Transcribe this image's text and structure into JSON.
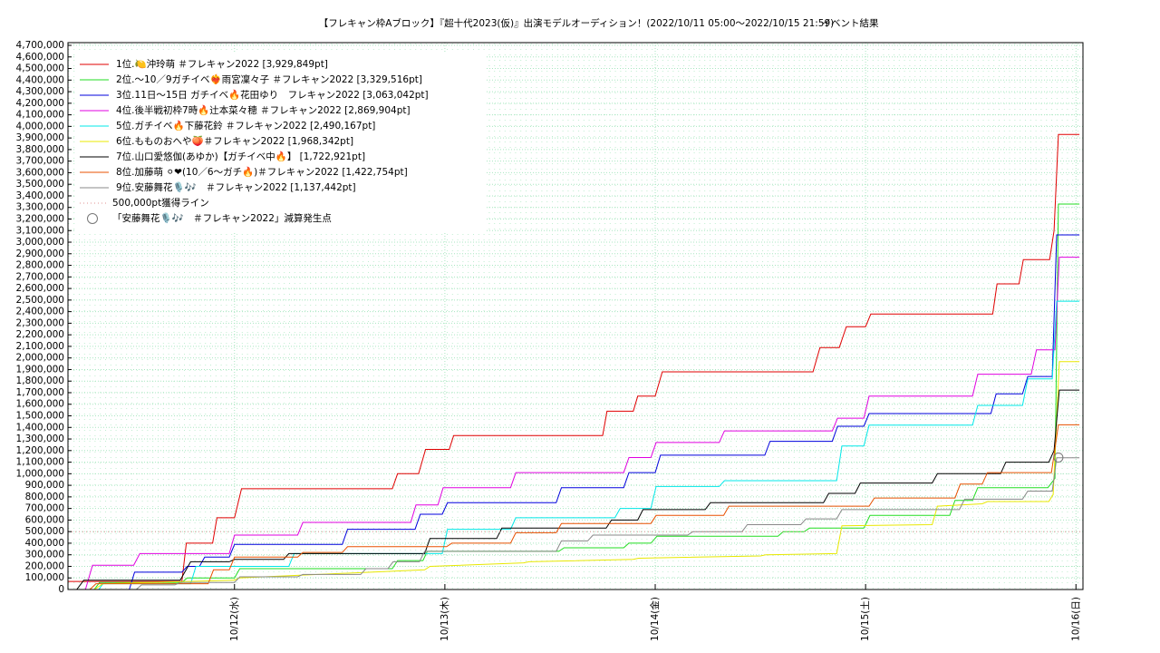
{
  "chart_data": {
    "type": "line",
    "title": "【フレキャン枠Aブロック】『超十代2023(仮)』出演モデルオーディション！(2022/10/11 05:00〜2022/10/15 21:59)",
    "subtitle": "イベント結果",
    "xlim": [
      5,
      120.8
    ],
    "xticks": [
      {
        "value": 24,
        "label": "10/12(水)"
      },
      {
        "value": 48,
        "label": "10/13(木)"
      },
      {
        "value": 72,
        "label": "10/14(金)"
      },
      {
        "value": 96,
        "label": "10/15(土)"
      },
      {
        "value": 120,
        "label": "10/16(日)"
      }
    ],
    "ylim": [
      0,
      4700000
    ],
    "yticks": [
      {
        "value": 0,
        "label": "0"
      },
      {
        "value": 100000,
        "label": "100,000"
      },
      {
        "value": 200000,
        "label": "200,000"
      },
      {
        "value": 300000,
        "label": "300,000"
      },
      {
        "value": 400000,
        "label": "400,000"
      },
      {
        "value": 500000,
        "label": "500,000"
      },
      {
        "value": 600000,
        "label": "600,000"
      },
      {
        "value": 700000,
        "label": "700,000"
      },
      {
        "value": 800000,
        "label": "800,000"
      },
      {
        "value": 900000,
        "label": "900,000"
      },
      {
        "value": 1000000,
        "label": "1,000,000"
      },
      {
        "value": 1100000,
        "label": "1,100,000"
      },
      {
        "value": 1200000,
        "label": "1,200,000"
      },
      {
        "value": 1300000,
        "label": "1,300,000"
      },
      {
        "value": 1400000,
        "label": "1,400,000"
      },
      {
        "value": 1500000,
        "label": "1,500,000"
      },
      {
        "value": 1600000,
        "label": "1,600,000"
      },
      {
        "value": 1700000,
        "label": "1,700,000"
      },
      {
        "value": 1800000,
        "label": "1,800,000"
      },
      {
        "value": 1900000,
        "label": "1,900,000"
      },
      {
        "value": 2000000,
        "label": "2,000,000"
      },
      {
        "value": 2100000,
        "label": "2,100,000"
      },
      {
        "value": 2200000,
        "label": "2,200,000"
      },
      {
        "value": 2300000,
        "label": "2,300,000"
      },
      {
        "value": 2400000,
        "label": "2,400,000"
      },
      {
        "value": 2500000,
        "label": "2,500,000"
      },
      {
        "value": 2600000,
        "label": "2,600,000"
      },
      {
        "value": 2700000,
        "label": "2,700,000"
      },
      {
        "value": 2800000,
        "label": "2,800,000"
      },
      {
        "value": 2900000,
        "label": "2,900,000"
      },
      {
        "value": 3000000,
        "label": "3,000,000"
      },
      {
        "value": 3100000,
        "label": "3,100,000"
      },
      {
        "value": 3200000,
        "label": "3,200,000"
      },
      {
        "value": 3300000,
        "label": "3,300,000"
      },
      {
        "value": 3400000,
        "label": "3,400,000"
      },
      {
        "value": 3500000,
        "label": "3,500,000"
      },
      {
        "value": 3600000,
        "label": "3,600,000"
      },
      {
        "value": 3700000,
        "label": "3,700,000"
      },
      {
        "value": 3800000,
        "label": "3,800,000"
      },
      {
        "value": 3900000,
        "label": "3,900,000"
      },
      {
        "value": 4000000,
        "label": "4,000,000"
      },
      {
        "value": 4100000,
        "label": "4,100,000"
      },
      {
        "value": 4200000,
        "label": "4,200,000"
      },
      {
        "value": 4300000,
        "label": "4,300,000"
      },
      {
        "value": 4400000,
        "label": "4,400,000"
      },
      {
        "value": 4500000,
        "label": "4,500,000"
      },
      {
        "value": 4600000,
        "label": "4,600,000"
      },
      {
        "value": 4700000,
        "label": "4,700,000"
      }
    ],
    "grid": true,
    "legend": "upper left",
    "series": [
      {
        "name": "1位.🍋沖玲萌 ＃フレキャン2022 [3,929,849pt]",
        "color": "#e00000",
        "x": [
          5,
          18,
          18.5,
          21.5,
          22,
          24,
          24.8,
          42,
          42.6,
          45,
          45.8,
          48.5,
          49,
          66,
          66.5,
          69.5,
          70,
          72,
          72.8,
          90,
          90.8,
          93,
          93.8,
          96,
          96.6,
          110.5,
          111,
          113.5,
          114,
          117,
          117.5,
          118,
          120.4
        ],
        "values": [
          70000,
          70000,
          400000,
          400000,
          620000,
          620000,
          870000,
          870000,
          1000000,
          1000000,
          1210000,
          1210000,
          1330000,
          1330000,
          1540000,
          1540000,
          1670000,
          1670000,
          1880000,
          1880000,
          2090000,
          2090000,
          2270000,
          2270000,
          2380000,
          2380000,
          2640000,
          2640000,
          2850000,
          2850000,
          3100000,
          3929849,
          3929849
        ]
      },
      {
        "name": "2位.〜10／9ガチイベ❤️‍🔥雨宮凜々子 ＃フレキャン2022 [3,329,516pt]",
        "color": "#22dd22",
        "x": [
          5,
          8,
          8.6,
          18,
          18.6,
          24,
          24.6,
          42,
          42.6,
          45.5,
          46,
          61,
          61.6,
          68.4,
          69,
          71.5,
          72.2,
          86,
          86.6,
          89,
          89.6,
          95.8,
          96.5,
          105.6,
          106.2,
          108.2,
          108.8,
          116.8,
          117.6,
          118,
          120.4
        ],
        "values": [
          0,
          0,
          60000,
          60000,
          100000,
          100000,
          180000,
          180000,
          250000,
          250000,
          330000,
          330000,
          360000,
          360000,
          400000,
          400000,
          460000,
          460000,
          500000,
          500000,
          530000,
          530000,
          640000,
          640000,
          770000,
          770000,
          880000,
          880000,
          960000,
          3329516,
          3329516
        ]
      },
      {
        "name": "3位.11日〜15日 ガチイベ🔥花田ゆり　フレキャン2022 [3,063,042pt]",
        "color": "#0000dd",
        "x": [
          5,
          12,
          12.6,
          18,
          18.6,
          20,
          20.6,
          23.4,
          24,
          36.3,
          36.9,
          44.6,
          45.2,
          47.7,
          48.3,
          60.7,
          61.3,
          68.4,
          69,
          72,
          72.6,
          84.5,
          85.1,
          92.2,
          92.8,
          95.8,
          96.4,
          110.3,
          110.9,
          113.9,
          114.5,
          117.3,
          117.8,
          120.4
        ],
        "values": [
          0,
          0,
          150000,
          150000,
          200000,
          200000,
          280000,
          280000,
          390000,
          390000,
          520000,
          520000,
          650000,
          650000,
          750000,
          750000,
          880000,
          880000,
          1010000,
          1010000,
          1160000,
          1160000,
          1280000,
          1280000,
          1410000,
          1410000,
          1520000,
          1520000,
          1690000,
          1690000,
          1840000,
          1840000,
          3063042,
          3063042
        ]
      },
      {
        "name": "4位.後半戦初枠7時🔥辻本菜々穂 ＃フレキャン2022 [2,869,904pt]",
        "color": "#e000e0",
        "x": [
          5,
          7,
          7.8,
          12.5,
          13.2,
          23.4,
          24,
          31.2,
          31.8,
          44.1,
          44.7,
          47.2,
          47.8,
          55.5,
          56.1,
          68.4,
          69,
          71.5,
          72.1,
          79.3,
          79.9,
          92.2,
          92.8,
          95.8,
          96.4,
          108.2,
          108.8,
          114.9,
          115.5,
          117.6,
          118.1,
          120.4
        ],
        "values": [
          0,
          0,
          210000,
          210000,
          310000,
          310000,
          470000,
          470000,
          580000,
          580000,
          730000,
          730000,
          880000,
          880000,
          1010000,
          1010000,
          1140000,
          1140000,
          1270000,
          1270000,
          1370000,
          1370000,
          1480000,
          1480000,
          1670000,
          1670000,
          1860000,
          1860000,
          2070000,
          2070000,
          2869904,
          2869904
        ]
      },
      {
        "name": "5位.ガチイベ🔥下藤花鈴 ＃フレキャン2022 [2,490,167pt]",
        "color": "#00e8e8",
        "x": [
          5,
          8.5,
          9,
          19,
          19.6,
          30.2,
          30.8,
          47.7,
          48.3,
          55.5,
          56.1,
          67.4,
          68,
          71.5,
          72.1,
          79.3,
          79.9,
          92.7,
          93.3,
          95.8,
          96.4,
          108.2,
          108.8,
          113.9,
          114.5,
          117.3,
          117.8,
          120.4
        ],
        "values": [
          0,
          0,
          50000,
          50000,
          200000,
          200000,
          310000,
          310000,
          520000,
          520000,
          620000,
          620000,
          700000,
          700000,
          890000,
          890000,
          940000,
          940000,
          1240000,
          1240000,
          1420000,
          1420000,
          1590000,
          1590000,
          1820000,
          1820000,
          2490167,
          2490167
        ]
      },
      {
        "name": "6位.もものおへや🍑＃フレキャン2022 [1,968,342pt]",
        "color": "#e8e800",
        "x": [
          5,
          8,
          9,
          24,
          24.5,
          45.7,
          46.3,
          57,
          57.6,
          69.5,
          70.1,
          84,
          84.6,
          92.7,
          93.3,
          103.6,
          104.2,
          109.3,
          109.9,
          116.9,
          117.4,
          118.1,
          120.4
        ],
        "values": [
          0,
          0,
          50000,
          80000,
          100000,
          170000,
          200000,
          230000,
          240000,
          260000,
          270000,
          290000,
          300000,
          310000,
          550000,
          560000,
          720000,
          740000,
          760000,
          760000,
          820000,
          1968342,
          1968342
        ]
      },
      {
        "name": "7位.山口愛悠伽(あゆか)【ガチイベ中🔥】 [1,722,921pt]",
        "color": "#000000",
        "x": [
          5,
          6,
          6.8,
          17.8,
          19,
          23.4,
          24,
          29.6,
          30.2,
          45.7,
          46.3,
          53.9,
          54.5,
          66.4,
          67,
          70,
          70.6,
          77.7,
          78.3,
          91.2,
          91.8,
          94.8,
          95.4,
          103.6,
          104.2,
          111.4,
          112,
          116.9,
          117.5,
          118.1,
          120.4
        ],
        "values": [
          0,
          0,
          80000,
          80000,
          240000,
          240000,
          260000,
          260000,
          310000,
          310000,
          440000,
          440000,
          530000,
          530000,
          600000,
          600000,
          690000,
          690000,
          750000,
          750000,
          830000,
          830000,
          920000,
          920000,
          1000000,
          1000000,
          1100000,
          1100000,
          1200000,
          1722921,
          1722921
        ]
      },
      {
        "name": "8位.加藤萌 ⚪❤(10／6〜ガチ🔥)＃フレキャン2022 [1,422,754pt]",
        "color": "#e85000",
        "x": [
          5,
          7.5,
          8.2,
          21,
          21.6,
          23.4,
          24,
          31.2,
          31.8,
          36.3,
          36.9,
          48.2,
          48.8,
          55.5,
          56.1,
          60.7,
          61.3,
          71.5,
          72.1,
          79.8,
          80.4,
          96.4,
          97,
          106.2,
          106.8,
          109.3,
          109.9,
          117.2,
          118,
          120.4
        ],
        "values": [
          0,
          0,
          50000,
          50000,
          170000,
          170000,
          280000,
          280000,
          320000,
          320000,
          370000,
          370000,
          400000,
          400000,
          490000,
          490000,
          570000,
          570000,
          640000,
          640000,
          720000,
          720000,
          790000,
          790000,
          910000,
          910000,
          1010000,
          1010000,
          1422754,
          1422754
        ]
      },
      {
        "name": "9位.安藤舞花🎙️🎶　＃フレキャン2022 [1,137,442pt]",
        "color": "#888888",
        "x": [
          5,
          12.8,
          13.4,
          17.2,
          17.8,
          24,
          24.6,
          31.2,
          31.8,
          38.4,
          39,
          41.5,
          42.1,
          45.1,
          45.7,
          60.7,
          61.3,
          64.3,
          64.9,
          75.7,
          76.3,
          81.9,
          82.5,
          88.6,
          89.2,
          92.7,
          93.3,
          106.7,
          107.3,
          113.9,
          114.5,
          117.3,
          117.8,
          120.4
        ],
        "values": [
          0,
          0,
          40000,
          40000,
          60000,
          60000,
          110000,
          110000,
          130000,
          130000,
          180000,
          180000,
          240000,
          240000,
          330000,
          330000,
          420000,
          420000,
          470000,
          470000,
          500000,
          500000,
          560000,
          560000,
          610000,
          610000,
          690000,
          690000,
          780000,
          780000,
          850000,
          850000,
          1137442,
          1137442
        ]
      },
      {
        "name": "500,000pt獲得ライン",
        "color": "#e09090",
        "style": "dotted",
        "x": [
          5,
          120.8
        ],
        "values": [
          500000,
          500000
        ]
      }
    ],
    "marker": {
      "label": "「安藤舞花🎙️🎶　＃フレキャン2022」減算発生点",
      "x": 118,
      "value": 1140000,
      "color": "#777777"
    }
  }
}
